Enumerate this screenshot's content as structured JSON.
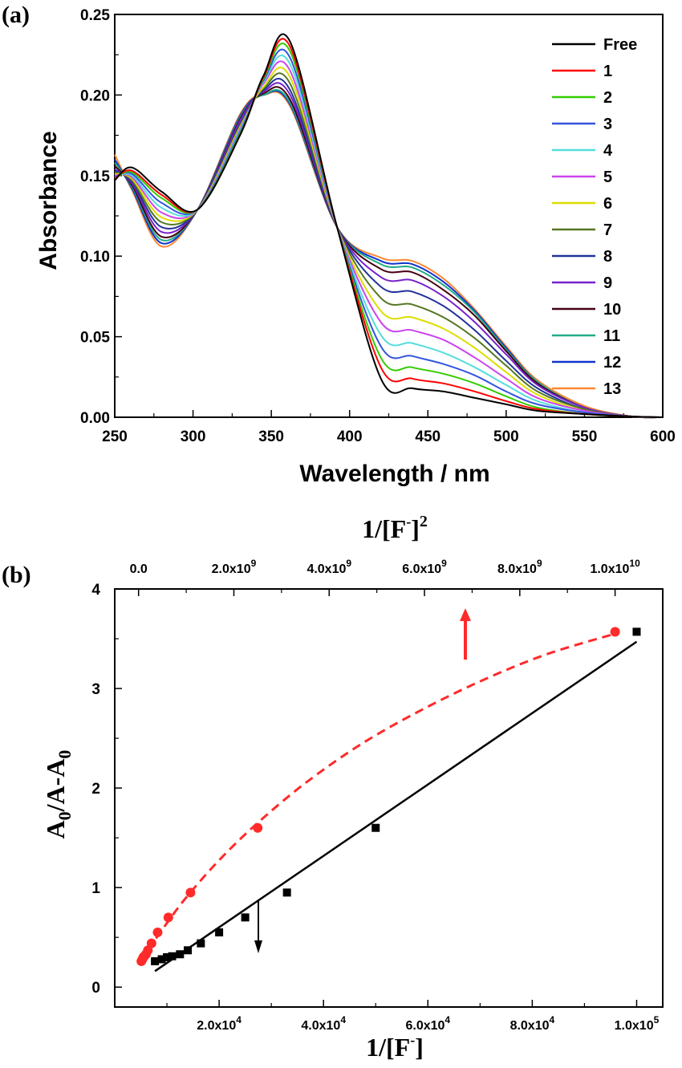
{
  "chart_data": [
    {
      "panel": "(a)",
      "type": "line",
      "xlabel": "Wavelength / nm",
      "ylabel": "Absorbance",
      "xlim": [
        250,
        600
      ],
      "ylim": [
        0.0,
        0.25
      ],
      "xticks": [
        "250",
        "300",
        "350",
        "400",
        "450",
        "500",
        "550",
        "600"
      ],
      "yticks": [
        "0.00",
        "0.05",
        "0.10",
        "0.15",
        "0.20",
        "0.25"
      ],
      "legend_position": "top-right",
      "grid": false,
      "isosbestic_points_nm": [
        302,
        344,
        392
      ],
      "x": [
        250,
        261,
        280,
        303,
        330,
        345,
        362,
        392,
        420,
        440,
        460,
        480,
        500,
        520,
        550,
        580,
        600
      ],
      "series": [
        {
          "name": "Free",
          "color": "#000000",
          "values": [
            0.147,
            0.155,
            0.14,
            0.129,
            0.175,
            0.212,
            0.233,
            0.118,
            0.024,
            0.018,
            0.016,
            0.012,
            0.008,
            0.004,
            0.002,
            0.0005,
            0.0
          ]
        },
        {
          "name": "1",
          "color": "#ff0000",
          "values": [
            0.148,
            0.153,
            0.138,
            0.129,
            0.175,
            0.211,
            0.23,
            0.118,
            0.031,
            0.024,
            0.021,
            0.016,
            0.01,
            0.005,
            0.002,
            0.0005,
            0.0
          ]
        },
        {
          "name": "2",
          "color": "#33cc00",
          "values": [
            0.148,
            0.152,
            0.136,
            0.129,
            0.176,
            0.21,
            0.227,
            0.118,
            0.037,
            0.031,
            0.027,
            0.021,
            0.013,
            0.006,
            0.002,
            0.0005,
            0.0
          ]
        },
        {
          "name": "3",
          "color": "#3355dd",
          "values": [
            0.149,
            0.151,
            0.133,
            0.129,
            0.177,
            0.209,
            0.223,
            0.118,
            0.044,
            0.038,
            0.033,
            0.026,
            0.016,
            0.008,
            0.003,
            0.0005,
            0.0
          ]
        },
        {
          "name": "4",
          "color": "#55dddd",
          "values": [
            0.149,
            0.15,
            0.13,
            0.129,
            0.178,
            0.208,
            0.219,
            0.118,
            0.051,
            0.046,
            0.04,
            0.031,
            0.02,
            0.01,
            0.003,
            0.0005,
            0.0
          ]
        },
        {
          "name": "5",
          "color": "#cc44ee",
          "values": [
            0.15,
            0.149,
            0.127,
            0.129,
            0.179,
            0.207,
            0.215,
            0.118,
            0.059,
            0.054,
            0.048,
            0.037,
            0.024,
            0.012,
            0.004,
            0.0005,
            0.0
          ]
        },
        {
          "name": "6",
          "color": "#dddd00",
          "values": [
            0.151,
            0.148,
            0.124,
            0.129,
            0.18,
            0.205,
            0.211,
            0.118,
            0.066,
            0.062,
            0.055,
            0.043,
            0.028,
            0.014,
            0.004,
            0.0005,
            0.0
          ]
        },
        {
          "name": "7",
          "color": "#557722",
          "values": [
            0.152,
            0.147,
            0.121,
            0.129,
            0.181,
            0.204,
            0.207,
            0.118,
            0.074,
            0.07,
            0.062,
            0.049,
            0.032,
            0.016,
            0.005,
            0.0005,
            0.0
          ]
        },
        {
          "name": "8",
          "color": "#223399",
          "values": [
            0.153,
            0.146,
            0.118,
            0.129,
            0.182,
            0.203,
            0.203,
            0.118,
            0.081,
            0.078,
            0.069,
            0.054,
            0.035,
            0.018,
            0.005,
            0.0005,
            0.0
          ]
        },
        {
          "name": "9",
          "color": "#7722cc",
          "values": [
            0.154,
            0.145,
            0.115,
            0.129,
            0.184,
            0.202,
            0.2,
            0.118,
            0.087,
            0.085,
            0.075,
            0.059,
            0.039,
            0.02,
            0.006,
            0.0005,
            0.0
          ]
        },
        {
          "name": "10",
          "color": "#440011",
          "values": [
            0.156,
            0.144,
            0.112,
            0.129,
            0.185,
            0.201,
            0.197,
            0.118,
            0.092,
            0.09,
            0.079,
            0.063,
            0.041,
            0.021,
            0.006,
            0.0005,
            0.0
          ]
        },
        {
          "name": "11",
          "color": "#22aa88",
          "values": [
            0.158,
            0.143,
            0.11,
            0.129,
            0.186,
            0.2,
            0.195,
            0.118,
            0.095,
            0.093,
            0.082,
            0.065,
            0.042,
            0.022,
            0.006,
            0.0005,
            0.0
          ]
        },
        {
          "name": "12",
          "color": "#1133cc",
          "values": [
            0.16,
            0.142,
            0.108,
            0.129,
            0.187,
            0.2,
            0.194,
            0.118,
            0.097,
            0.095,
            0.084,
            0.066,
            0.043,
            0.022,
            0.006,
            0.0005,
            0.0
          ]
        },
        {
          "name": "13",
          "color": "#ff8833",
          "values": [
            0.163,
            0.141,
            0.106,
            0.129,
            0.188,
            0.2,
            0.193,
            0.118,
            0.099,
            0.097,
            0.086,
            0.067,
            0.044,
            0.023,
            0.007,
            0.0005,
            0.0
          ]
        }
      ]
    },
    {
      "panel": "(b)",
      "type": "scatter",
      "xlabel_bottom": "1/[F]",
      "xlabel_top": "1/[F]",
      "ylabel": "A0/A-A0",
      "bottom_xlim": [
        0,
        105000
      ],
      "top_xlim": [
        -500000000,
        11000000000
      ],
      "ylim": [
        -0.2,
        4
      ],
      "bottom_xticks": [
        20000,
        40000,
        60000,
        80000,
        100000
      ],
      "bottom_xtick_bases": [
        "2.0x10",
        "4.0x10",
        "6.0x10",
        "8.0x10",
        "1.0x10"
      ],
      "bottom_xtick_exps": [
        "4",
        "4",
        "4",
        "4",
        "5"
      ],
      "top_xticks": [
        0,
        2000000000,
        4000000000,
        6000000000,
        8000000000,
        10000000000
      ],
      "top_xtick_bases": [
        "0.0",
        "2.0x10",
        "4.0x10",
        "6.0x10",
        "8.0x10",
        "1.0x10"
      ],
      "top_xtick_exps": [
        "",
        "9",
        "9",
        "9",
        "9",
        "10"
      ],
      "yticks": [
        "0",
        "1",
        "2",
        "3",
        "4"
      ],
      "series": [
        {
          "axis": "bottom",
          "marker": "square",
          "color": "#000000",
          "x": [
            7700,
            9000,
            10000,
            11000,
            12500,
            14000,
            16500,
            20000,
            25000,
            33000,
            50000,
            100000
          ],
          "y": [
            0.26,
            0.28,
            0.3,
            0.31,
            0.33,
            0.37,
            0.44,
            0.55,
            0.7,
            0.95,
            1.6,
            3.57
          ],
          "fit": "linear",
          "fit_x": [
            7700,
            100000
          ],
          "fit_y": [
            0.16,
            3.47
          ]
        },
        {
          "axis": "top",
          "marker": "circle",
          "color": "#ff2a2a",
          "x": [
            59000000,
            81000000,
            100000000,
            121000000,
            156000000,
            196000000,
            272000000,
            400000000,
            625000000,
            1090000000,
            2500000000,
            10000000000
          ],
          "y": [
            0.26,
            0.28,
            0.3,
            0.31,
            0.33,
            0.37,
            0.44,
            0.55,
            0.7,
            0.95,
            1.6,
            3.57
          ],
          "fit": "dashed curve",
          "fit_x": [
            59000000,
            200000000,
            500000000,
            1000000000,
            1700000000,
            2500000000,
            3500000000,
            4700000000,
            6000000000,
            7300000000,
            8600000000,
            10000000000
          ],
          "fit_y": [
            0.24,
            0.37,
            0.58,
            0.9,
            1.28,
            1.65,
            2.05,
            2.45,
            2.8,
            3.1,
            3.35,
            3.55
          ]
        }
      ]
    }
  ],
  "labels": {
    "panel_a": "(a)",
    "panel_b": "(b)",
    "a_ylabel": "Absorbance",
    "a_xlabel": "Wavelength / nm",
    "b_top_title_base": "1/[F",
    "b_top_title_minus": "-",
    "b_top_title_close": "]",
    "b_top_title_exp": "2",
    "b_bottom_title_base": "1/[F",
    "b_bottom_title_minus": "-",
    "b_bottom_title_close": "]",
    "b_ylabel_a": "A",
    "b_ylabel_sub1": "0",
    "b_ylabel_mid": "/A-A",
    "b_ylabel_sub2": "0"
  }
}
